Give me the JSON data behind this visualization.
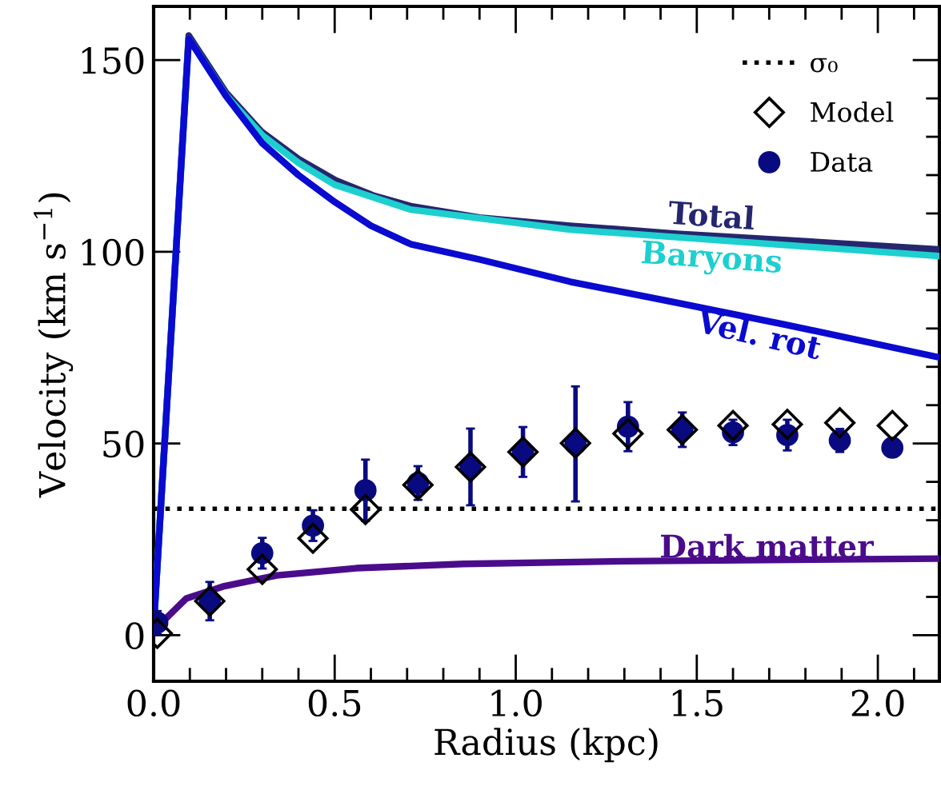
{
  "chart_data": {
    "type": "line",
    "xlabel": "Radius (kpc)",
    "ylabel": "Velocity (km s$^{−1}$)",
    "xlim": [
      0,
      2.17
    ],
    "ylim": [
      -12,
      164
    ],
    "xticks": [
      {
        "value": 0,
        "label": "0.0"
      },
      {
        "value": 0.5,
        "label": "0.5"
      },
      {
        "value": 1.0,
        "label": "1.0"
      },
      {
        "value": 1.5,
        "label": "1.5"
      },
      {
        "value": 2.0,
        "label": "2.0"
      }
    ],
    "yticks": [
      0,
      50,
      100,
      150
    ],
    "grid": false,
    "legend": "top right",
    "ref_lines": [
      {
        "axis": "y",
        "value": 33,
        "label": "σ₀",
        "color": "#000000",
        "line_style": "dotted"
      }
    ],
    "series": [
      {
        "name": "Total",
        "type": "line",
        "color": "#26266e",
        "marker": "none",
        "x": [
          0.0,
          0.097,
          0.2,
          0.297,
          0.4,
          0.503,
          0.606,
          0.71,
          0.9,
          1.15,
          1.445,
          1.74,
          2.167
        ],
        "values": [
          2,
          156.4,
          141.5,
          131.4,
          124.2,
          118.6,
          114.7,
          111.9,
          108.9,
          106.8,
          104.7,
          103.1,
          100.6
        ]
      },
      {
        "name": "Baryons",
        "type": "line",
        "color": "#1ecfcf",
        "marker": "none",
        "x": [
          0.0,
          0.097,
          0.2,
          0.3,
          0.4,
          0.5,
          0.71,
          1.15,
          2.167
        ],
        "values": [
          2,
          155.6,
          140.8,
          130.4,
          123.2,
          117.5,
          111,
          105.8,
          98.9
        ]
      },
      {
        "name": "Vel. rot",
        "type": "line",
        "color": "#0a0ad0",
        "marker": "none",
        "x": [
          0.0,
          0.097,
          0.2,
          0.3,
          0.4,
          0.5,
          0.6,
          0.71,
          0.9,
          1.15,
          1.445,
          1.74,
          2.167
        ],
        "values": [
          2,
          155.6,
          140.6,
          128.3,
          120,
          113,
          106.8,
          102,
          98,
          92.2,
          86.7,
          81.1,
          72.5
        ]
      },
      {
        "name": "Dark matter",
        "type": "line",
        "color": "#4b0c8c",
        "marker": "none",
        "x": [
          0.0,
          0.09,
          0.195,
          0.34,
          0.56,
          0.855,
          1.3,
          2.167
        ],
        "values": [
          1.2,
          9.6,
          12.8,
          15.6,
          17.5,
          18.6,
          19.3,
          20.0
        ]
      },
      {
        "name": "Data",
        "type": "scatter",
        "color": "#0a0a80",
        "marker": "circle",
        "x": [
          0.01,
          0.155,
          0.3,
          0.44,
          0.585,
          0.73,
          0.875,
          1.02,
          1.165,
          1.31,
          1.46,
          1.6,
          1.75,
          1.895,
          2.04
        ],
        "values": [
          3.3,
          8.9,
          21.4,
          28.6,
          37.8,
          39.7,
          43.9,
          47.8,
          49.9,
          54.4,
          53.6,
          52.9,
          52.2,
          50.8,
          48.9
        ],
        "errors": [
          3,
          5,
          4,
          4,
          8,
          4.4,
          10,
          6.5,
          15,
          6.4,
          4.5,
          3.3,
          4,
          3,
          2.4
        ]
      },
      {
        "name": "Model",
        "type": "scatter",
        "color": "#000000",
        "marker": "diamond",
        "x": [
          0.01,
          0.155,
          0.3,
          0.44,
          0.585,
          0.73,
          0.875,
          1.02,
          1.165,
          1.31,
          1.46,
          1.6,
          1.75,
          1.895,
          2.04
        ],
        "values": [
          0.5,
          8.9,
          17.2,
          25.3,
          32.8,
          39.2,
          43.9,
          47.8,
          50.1,
          52.6,
          53.6,
          54.7,
          55.0,
          55.4,
          54.7
        ]
      }
    ]
  }
}
